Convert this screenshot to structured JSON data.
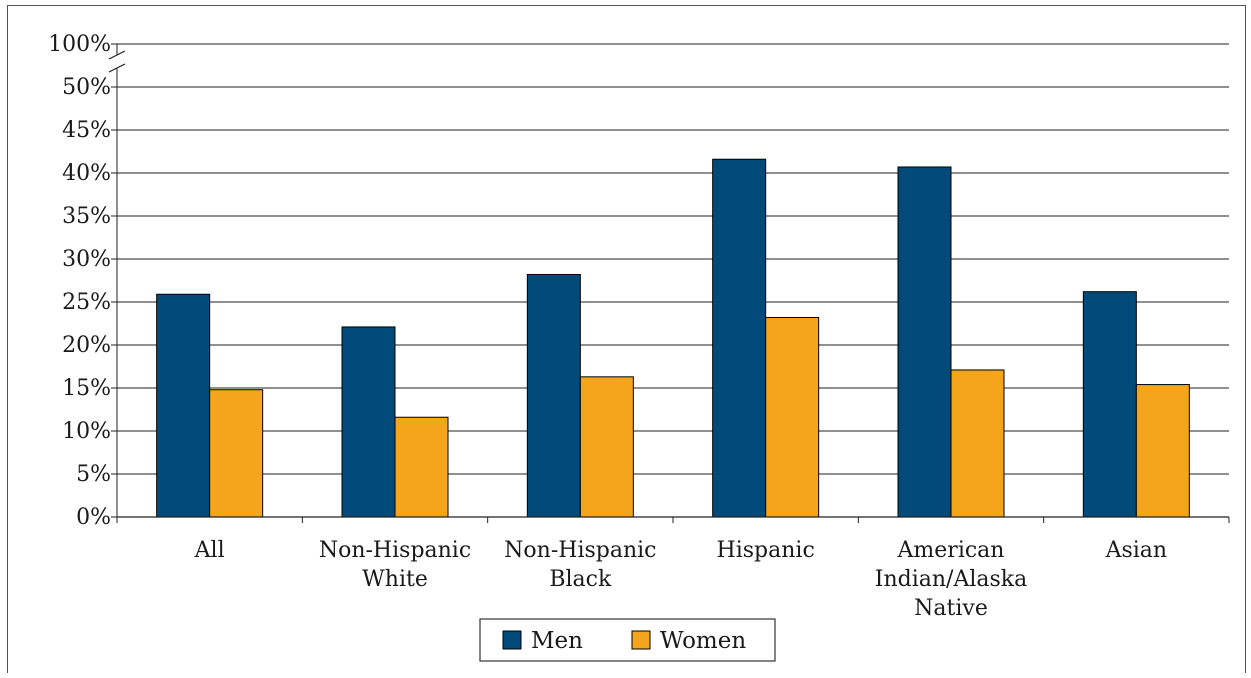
{
  "chart_data": {
    "type": "bar",
    "title": "",
    "xlabel": "",
    "ylabel": "",
    "categories": [
      [
        "All"
      ],
      [
        "Non-Hispanic",
        "White"
      ],
      [
        "Non-Hispanic",
        "Black"
      ],
      [
        "Hispanic"
      ],
      [
        "American",
        "Indian/Alaska",
        "Native"
      ],
      [
        "Asian"
      ]
    ],
    "series": [
      {
        "name": "Men",
        "color": "#024a7a",
        "values": [
          25.9,
          22.1,
          28.2,
          41.6,
          40.7,
          26.2
        ]
      },
      {
        "name": "Women",
        "color": "#f5a51c",
        "values": [
          14.8,
          11.6,
          16.3,
          23.2,
          17.1,
          15.4
        ]
      }
    ],
    "ylim": [
      0,
      50
    ],
    "yticks": [
      "0%",
      "5%",
      "10%",
      "15%",
      "20%",
      "25%",
      "30%",
      "35%",
      "40%",
      "45%",
      "50%"
    ],
    "axis_break": {
      "top_label": "100%",
      "top_value": 100
    },
    "grid": true,
    "legend_position": "bottom-center"
  }
}
